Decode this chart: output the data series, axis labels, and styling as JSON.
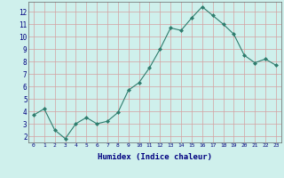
{
  "x": [
    0,
    1,
    2,
    3,
    4,
    5,
    6,
    7,
    8,
    9,
    10,
    11,
    12,
    13,
    14,
    15,
    16,
    17,
    18,
    19,
    20,
    21,
    22,
    23
  ],
  "y": [
    3.7,
    4.2,
    2.5,
    1.8,
    3.0,
    3.5,
    3.0,
    3.2,
    3.9,
    5.7,
    6.3,
    7.5,
    9.0,
    10.7,
    10.5,
    11.5,
    12.4,
    11.7,
    11.0,
    10.2,
    8.5,
    7.9,
    8.2,
    7.7
  ],
  "xlabel": "Humidex (Indice chaleur)",
  "ylim": [
    1.5,
    12.8
  ],
  "xlim": [
    -0.5,
    23.5
  ],
  "yticks": [
    2,
    3,
    4,
    5,
    6,
    7,
    8,
    9,
    10,
    11,
    12
  ],
  "xticks": [
    0,
    1,
    2,
    3,
    4,
    5,
    6,
    7,
    8,
    9,
    10,
    11,
    12,
    13,
    14,
    15,
    16,
    17,
    18,
    19,
    20,
    21,
    22,
    23
  ],
  "line_color": "#2e7d6e",
  "marker_color": "#2e7d6e",
  "bg_color": "#cff0ec",
  "grid_color": "#d4a0a0",
  "tick_label_color": "#000080",
  "xlabel_color": "#000080"
}
